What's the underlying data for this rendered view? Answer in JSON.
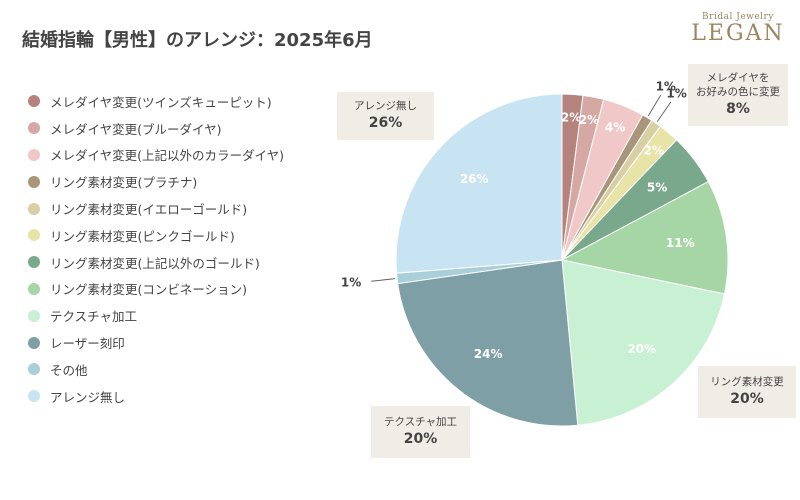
{
  "brand": {
    "logo_sub": "Bridal Jewelry",
    "logo_main": "LEGAN"
  },
  "chart_data": {
    "type": "pie",
    "title": "結婚指輪【男性】のアレンジ：2025年6月",
    "legend_position": "left",
    "slices": [
      {
        "label": "メレダイヤ変更(ツインズキューピット)",
        "value": 2,
        "display": "2%",
        "color": "#b5827e"
      },
      {
        "label": "メレダイヤ変更(ブルーダイヤ)",
        "value": 2,
        "display": "2%",
        "color": "#d6a8a4"
      },
      {
        "label": "メレダイヤ変更(上記以外のカラーダイヤ)",
        "value": 4,
        "display": "4%",
        "color": "#f0c8c8"
      },
      {
        "label": "リング素材変更(プラチナ)",
        "value": 1,
        "display": "1%",
        "color": "#a9967a"
      },
      {
        "label": "リング素材変更(イエローゴールド)",
        "value": 1,
        "display": "1%",
        "color": "#d9cfa5"
      },
      {
        "label": "リング素材変更(ピンクゴールド)",
        "value": 2,
        "display": "2%",
        "color": "#e8e3a6"
      },
      {
        "label": "リング素材変更(上記以外のゴールド)",
        "value": 5,
        "display": "5%",
        "color": "#7aa88c"
      },
      {
        "label": "リング素材変更(コンビネーション)",
        "value": 11,
        "display": "11%",
        "color": "#a6d6a6"
      },
      {
        "label": "テクスチャ加工",
        "value": 20,
        "display": "20%",
        "color": "#c8f0d2"
      },
      {
        "label": "レーザー刻印",
        "value": 24,
        "display": "24%",
        "color": "#7e9fa6"
      },
      {
        "label": "その他",
        "value": 1,
        "display": "1%",
        "color": "#a9cfd8"
      },
      {
        "label": "アレンジ無し",
        "value": 26,
        "display": "26%",
        "color": "#c8e4f2"
      }
    ],
    "callouts": [
      {
        "label": "アレンジ無し",
        "value": "26%"
      },
      {
        "label": "メレダイヤを\nお好みの色に変更",
        "value": "8%"
      },
      {
        "label": "リング素材変更",
        "value": "20%"
      },
      {
        "label": "テクスチャ加工",
        "value": "20%"
      }
    ]
  }
}
